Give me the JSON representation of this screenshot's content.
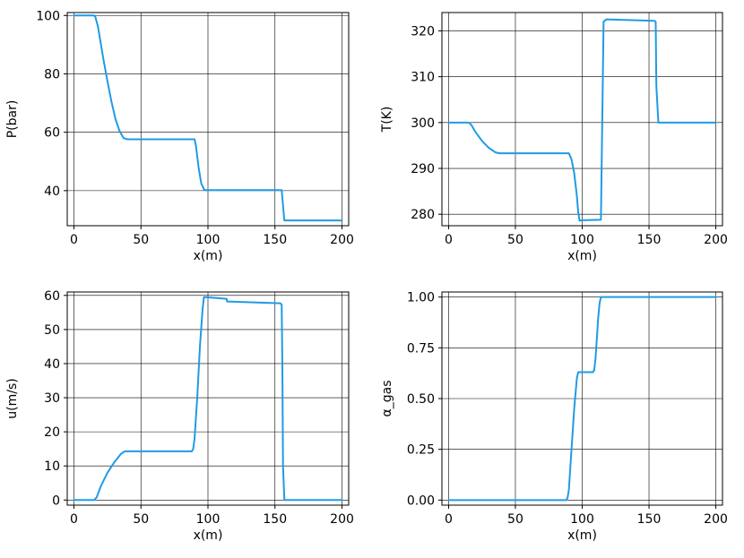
{
  "colors": {
    "series": "#1f9be6",
    "grid": "#000000",
    "axes": "#000000"
  },
  "chart_data": [
    {
      "type": "line",
      "xlabel": "x(m)",
      "ylabel": "P(bar)",
      "xlim": [
        -5,
        205
      ],
      "ylim": [
        28,
        101
      ],
      "xticks": [
        0,
        50,
        100,
        150,
        200
      ],
      "xtick_labels": [
        "0",
        "50",
        "100",
        "150",
        "200"
      ],
      "yticks": [
        40,
        60,
        80,
        100
      ],
      "ytick_labels": [
        "40",
        "60",
        "80",
        "100"
      ],
      "grid": true,
      "series": [
        {
          "x": [
            0,
            15,
            16,
            18,
            20,
            22,
            25,
            28,
            31,
            34,
            37,
            40,
            90,
            91,
            93,
            95,
            97,
            98,
            100,
            155,
            156,
            157,
            200
          ],
          "y": [
            100,
            100,
            99.5,
            96,
            90.5,
            85,
            77.5,
            70.5,
            64.5,
            60.5,
            58,
            57.6,
            57.6,
            55.5,
            48,
            42.5,
            40.5,
            40.2,
            40.2,
            40.2,
            35,
            29.8,
            29.8
          ]
        }
      ]
    },
    {
      "type": "line",
      "xlabel": "x(m)",
      "ylabel": "T(K)",
      "xlim": [
        -5,
        205
      ],
      "ylim": [
        277.5,
        324
      ],
      "xticks": [
        0,
        50,
        100,
        150,
        200
      ],
      "xtick_labels": [
        "0",
        "50",
        "100",
        "150",
        "200"
      ],
      "yticks": [
        280,
        290,
        300,
        310,
        320
      ],
      "ytick_labels": [
        "280",
        "290",
        "300",
        "310",
        "320"
      ],
      "grid": true,
      "series": [
        {
          "x": [
            0,
            15,
            17,
            20,
            25,
            30,
            35,
            38,
            40,
            90,
            92,
            94,
            96,
            97,
            98,
            100,
            114,
            115,
            116,
            118,
            154,
            155,
            155.5,
            157,
            200
          ],
          "y": [
            300,
            300,
            299.5,
            298,
            296,
            294.5,
            293.5,
            293.3,
            293.3,
            293.3,
            292,
            289,
            284,
            280.5,
            278.6,
            278.7,
            278.8,
            300,
            322,
            322.5,
            322.2,
            322,
            308,
            300,
            300
          ]
        }
      ]
    },
    {
      "type": "line",
      "xlabel": "x(m)",
      "ylabel": "u(m/s)",
      "xlim": [
        -5,
        205
      ],
      "ylim": [
        -1.5,
        61
      ],
      "xticks": [
        0,
        50,
        100,
        150,
        200
      ],
      "xtick_labels": [
        "0",
        "50",
        "100",
        "150",
        "200"
      ],
      "yticks": [
        0,
        10,
        20,
        30,
        40,
        50,
        60
      ],
      "ytick_labels": [
        "0",
        "10",
        "20",
        "30",
        "40",
        "50",
        "60"
      ],
      "grid": true,
      "series": [
        {
          "x": [
            0,
            15,
            17,
            20,
            25,
            30,
            35,
            38,
            40,
            88,
            89,
            90,
            92,
            94,
            96,
            97,
            98,
            114,
            114.2,
            154,
            155,
            155.5,
            156,
            157,
            200
          ],
          "y": [
            0,
            0,
            0.8,
            4,
            8,
            11,
            13.5,
            14.3,
            14.3,
            14.3,
            15,
            18,
            30,
            45,
            56,
            59.5,
            59.5,
            59,
            58.2,
            57.7,
            57.3,
            40,
            10,
            0,
            0
          ]
        }
      ]
    },
    {
      "type": "line",
      "xlabel": "x(m)",
      "ylabel": "α_gas",
      "xlim": [
        -5,
        205
      ],
      "ylim": [
        -0.025,
        1.025
      ],
      "xticks": [
        0,
        50,
        100,
        150,
        200
      ],
      "xtick_labels": [
        "0",
        "50",
        "100",
        "150",
        "200"
      ],
      "yticks": [
        0,
        0.25,
        0.5,
        0.75,
        1.0
      ],
      "ytick_labels": [
        "0.00",
        "0.25",
        "0.50",
        "0.75",
        "1.00"
      ],
      "grid": true,
      "series": [
        {
          "x": [
            0,
            88,
            89,
            90,
            92,
            94,
            96,
            97,
            98,
            108,
            109,
            110,
            111,
            112,
            113,
            114,
            200
          ],
          "y": [
            0,
            0,
            0.01,
            0.05,
            0.25,
            0.45,
            0.6,
            0.63,
            0.63,
            0.63,
            0.64,
            0.7,
            0.8,
            0.9,
            0.97,
            1.0,
            1.0
          ]
        }
      ]
    }
  ]
}
